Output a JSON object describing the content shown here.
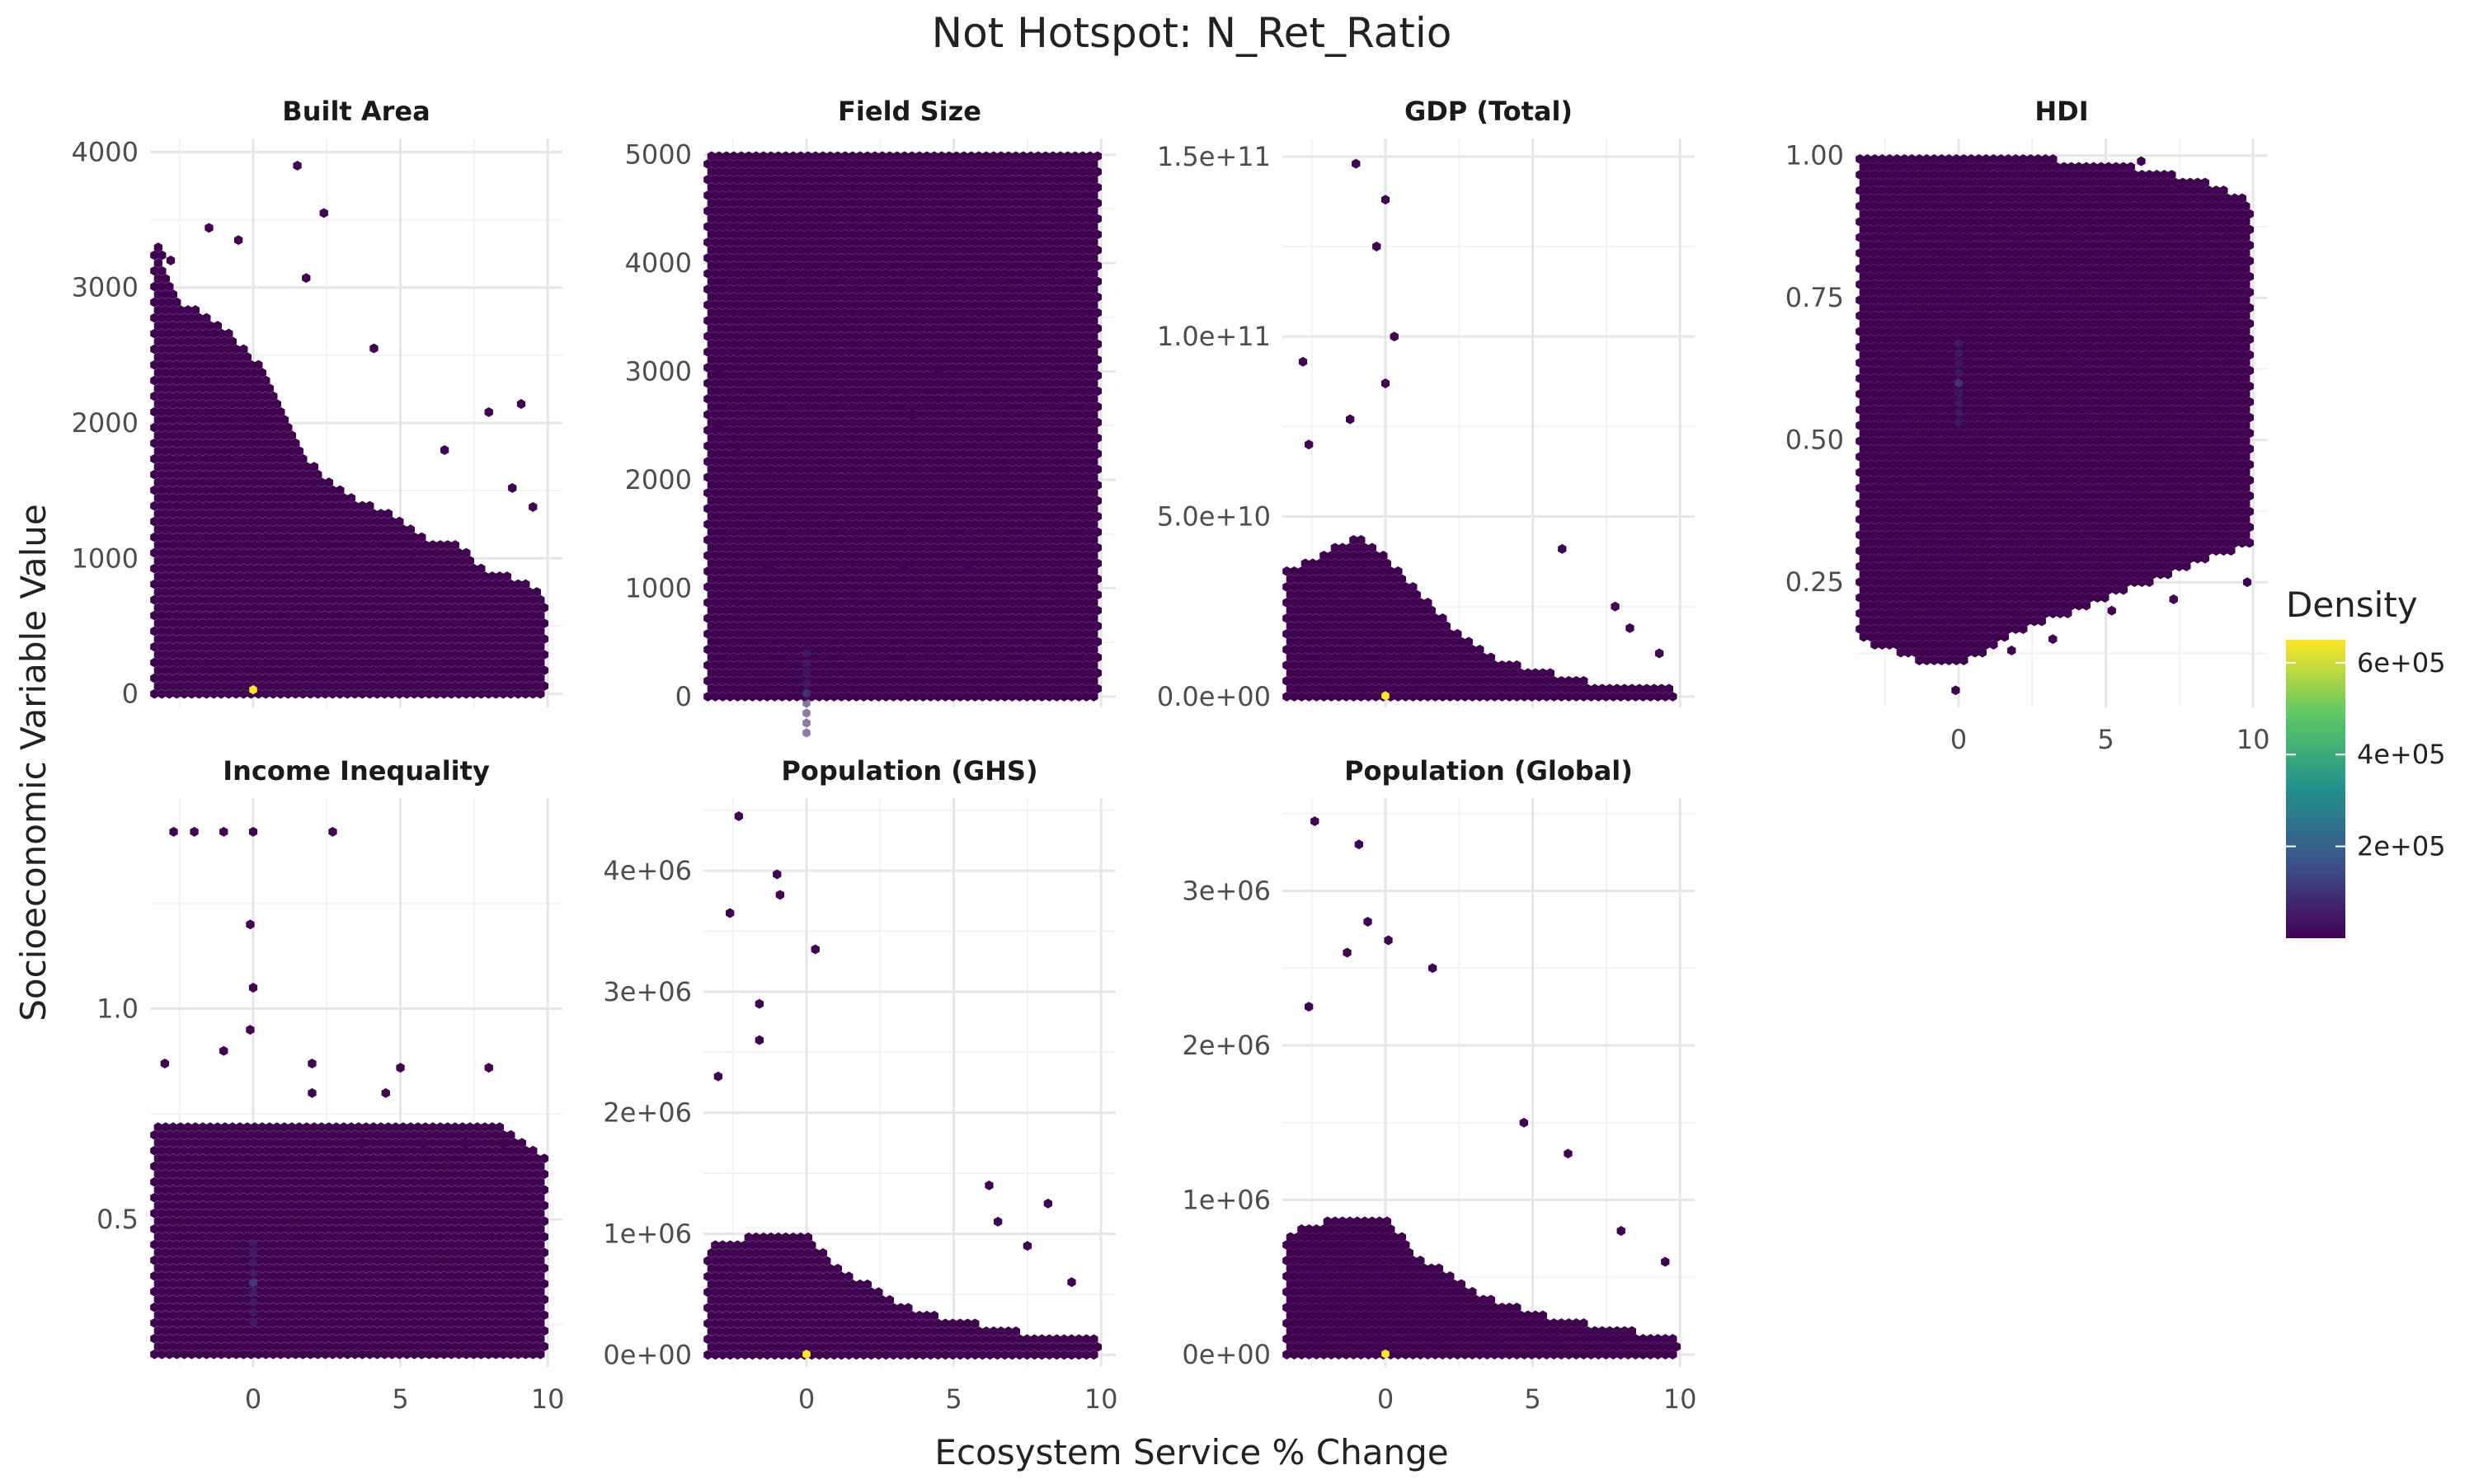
{
  "chart_data": {
    "type": "hexbin",
    "title": "Not Hotspot: N_Ret_Ratio",
    "xlabel": "Ecosystem Service % Change",
    "ylabel": "Socioeconomic Variable Value",
    "legend": {
      "title": "Density",
      "position": "right",
      "colormap": [
        "#440154",
        "#3b528b",
        "#21908c",
        "#5dc863",
        "#fde725"
      ],
      "range": [
        0,
        650000
      ],
      "ticks": [
        200000,
        400000,
        600000
      ],
      "tick_labels": [
        "2e+05",
        "4e+05",
        "6e+05"
      ]
    },
    "x_ticks": [
      0,
      5,
      10
    ],
    "x_tick_labels": [
      "0",
      "5",
      "10"
    ],
    "x_range": [
      -3.5,
      10.5
    ],
    "hex_fill_color": "#440154",
    "panels": [
      {
        "name": "Built Area",
        "ylim": [
          -100,
          4100
        ],
        "y_ticks": [
          0,
          1000,
          2000,
          3000,
          4000
        ],
        "y_tick_labels": [
          "0",
          "1000",
          "2000",
          "3000",
          "4000"
        ],
        "show_x_axis": false,
        "envelope": [
          [
            -3.2,
            3300
          ],
          [
            -2.5,
            2900
          ],
          [
            -1.5,
            2800
          ],
          [
            -0.5,
            2600
          ],
          [
            0,
            2500
          ],
          [
            1,
            2100
          ],
          [
            2,
            1700
          ],
          [
            3,
            1500
          ],
          [
            4,
            1400
          ],
          [
            5,
            1300
          ],
          [
            6,
            1150
          ],
          [
            7,
            1100
          ],
          [
            8,
            900
          ],
          [
            9,
            850
          ],
          [
            10,
            700
          ]
        ],
        "outliers": [
          [
            1.5,
            3900
          ],
          [
            2.4,
            3550
          ],
          [
            1.8,
            3070
          ],
          [
            -1.5,
            3440
          ],
          [
            -0.5,
            3350
          ],
          [
            -2.8,
            3200
          ],
          [
            4.1,
            2550
          ],
          [
            8.0,
            2080
          ],
          [
            9.1,
            2140
          ],
          [
            6.5,
            1800
          ],
          [
            8.8,
            1520
          ],
          [
            9.5,
            1380
          ]
        ],
        "density_peak": [
          [
            0,
            30,
            1.0
          ]
        ]
      },
      {
        "name": "Field Size",
        "ylim": [
          -100,
          5150
        ],
        "y_ticks": [
          0,
          1000,
          2000,
          3000,
          4000,
          5000
        ],
        "y_tick_labels": [
          "0",
          "1000",
          "2000",
          "3000",
          "4000",
          "5000"
        ],
        "show_x_axis": false,
        "envelope": [
          [
            -3.3,
            5000
          ],
          [
            6,
            5000
          ],
          [
            10,
            5000
          ]
        ],
        "outliers": [
          [
            -3.0,
            3000
          ],
          [
            -3.0,
            2500
          ],
          [
            -2.3,
            2250
          ],
          [
            -1.3,
            1200
          ],
          [
            3.6,
            2600
          ],
          [
            4.5,
            3000
          ],
          [
            3.3,
            1200
          ],
          [
            5.5,
            1200
          ]
        ],
        "density_peak": [
          [
            0,
            30,
            0.15
          ]
        ]
      },
      {
        "name": "GDP (Total)",
        "ylim": [
          -3000000000,
          155000000000
        ],
        "y_ticks": [
          0,
          50000000000,
          100000000000,
          150000000000
        ],
        "y_tick_labels": [
          "0.0e+00",
          "5.0e+10",
          "1.0e+11",
          "1.5e+11"
        ],
        "show_x_axis": false,
        "envelope": [
          [
            -3.2,
            35000000000
          ],
          [
            -2,
            40000000000
          ],
          [
            -1,
            45000000000
          ],
          [
            0,
            40000000000
          ],
          [
            1,
            30000000000
          ],
          [
            2,
            22000000000
          ],
          [
            3,
            14000000000
          ],
          [
            4,
            10000000000
          ],
          [
            5,
            8000000000
          ],
          [
            6,
            6000000000
          ],
          [
            7,
            4000000000
          ],
          [
            8,
            3000000000
          ],
          [
            10,
            2000000000
          ]
        ],
        "outliers": [
          [
            -1.0,
            148000000000
          ],
          [
            0.0,
            138000000000
          ],
          [
            -0.3,
            125000000000
          ],
          [
            0.3,
            100000000000
          ],
          [
            -2.8,
            93000000000
          ],
          [
            0.0,
            87000000000
          ],
          [
            -1.2,
            77000000000
          ],
          [
            -2.6,
            70000000000
          ],
          [
            6.0,
            41000000000
          ],
          [
            7.8,
            25000000000
          ],
          [
            8.3,
            19000000000
          ],
          [
            9.3,
            12000000000
          ]
        ],
        "density_peak": [
          [
            0,
            200000000,
            1.0
          ]
        ]
      },
      {
        "name": "HDI",
        "ylim": [
          0.03,
          1.03
        ],
        "y_ticks": [
          0.25,
          0.5,
          0.75,
          1.0
        ],
        "y_tick_labels": [
          "0.25",
          "0.50",
          "0.75",
          "1.00"
        ],
        "show_x_axis": true,
        "envelope_band": [
          [
            -3.3,
            0.15,
            1.0
          ],
          [
            -1,
            0.1,
            1.0
          ],
          [
            0,
            0.1,
            1.0
          ],
          [
            2,
            0.16,
            1.0
          ],
          [
            4,
            0.2,
            0.99
          ],
          [
            6,
            0.24,
            0.98
          ],
          [
            8,
            0.28,
            0.96
          ],
          [
            10,
            0.32,
            0.92
          ]
        ],
        "outliers": [
          [
            -0.1,
            0.06
          ],
          [
            1.8,
            0.13
          ],
          [
            3.2,
            0.15
          ],
          [
            5.2,
            0.2
          ],
          [
            7.3,
            0.22
          ],
          [
            9.8,
            0.25
          ],
          [
            6.2,
            0.99
          ],
          [
            7.5,
            0.95
          ]
        ],
        "density_peak": [
          [
            0,
            0.6,
            0.15
          ]
        ]
      },
      {
        "name": "Income Inequality",
        "ylim": [
          0.15,
          1.5
        ],
        "y_ticks": [
          0.5,
          1.0
        ],
        "y_tick_labels": [
          "0.5",
          "1.0"
        ],
        "show_x_axis": true,
        "envelope": [
          [
            -3.3,
            0.73
          ],
          [
            6,
            0.73
          ],
          [
            8.2,
            0.73
          ],
          [
            9.8,
            0.65
          ]
        ],
        "floor": 0.18,
        "outliers": [
          [
            -2.7,
            1.42
          ],
          [
            -2.0,
            1.42
          ],
          [
            -1.0,
            1.42
          ],
          [
            0.0,
            1.42
          ],
          [
            2.7,
            1.42
          ],
          [
            -0.1,
            1.2
          ],
          [
            0.0,
            1.05
          ],
          [
            -0.1,
            0.95
          ],
          [
            -3.0,
            0.87
          ],
          [
            -1.0,
            0.9
          ],
          [
            2.0,
            0.87
          ],
          [
            5.0,
            0.86
          ],
          [
            8.0,
            0.86
          ],
          [
            3.7,
            0.68
          ],
          [
            5.8,
            0.68
          ],
          [
            7.2,
            0.68
          ],
          [
            8.5,
            0.68
          ],
          [
            4.5,
            0.8
          ],
          [
            2.0,
            0.8
          ]
        ],
        "density_peak": [
          [
            0,
            0.35,
            0.18
          ]
        ]
      },
      {
        "name": "Population (GHS)",
        "ylim": [
          -100000,
          4600000
        ],
        "y_ticks": [
          0,
          1000000,
          2000000,
          3000000,
          4000000
        ],
        "y_tick_labels": [
          "0e+00",
          "1e+06",
          "2e+06",
          "3e+06",
          "4e+06"
        ],
        "show_x_axis": true,
        "envelope": [
          [
            -3.2,
            900000
          ],
          [
            -1.5,
            1000000
          ],
          [
            0,
            1000000
          ],
          [
            1,
            750000
          ],
          [
            2,
            600000
          ],
          [
            3,
            450000
          ],
          [
            4,
            350000
          ],
          [
            5,
            300000
          ],
          [
            6,
            250000
          ],
          [
            7,
            200000
          ],
          [
            8,
            180000
          ],
          [
            10,
            150000
          ]
        ],
        "outliers": [
          [
            -2.3,
            4450000
          ],
          [
            -1.0,
            3970000
          ],
          [
            -0.9,
            3800000
          ],
          [
            -2.6,
            3650000
          ],
          [
            0.3,
            3350000
          ],
          [
            -1.6,
            2900000
          ],
          [
            -1.6,
            2600000
          ],
          [
            -3.0,
            2300000
          ],
          [
            6.2,
            1400000
          ],
          [
            8.2,
            1250000
          ],
          [
            6.5,
            1100000
          ],
          [
            9.0,
            600000
          ],
          [
            7.5,
            900000
          ]
        ],
        "density_peak": [
          [
            0,
            5000,
            1.0
          ]
        ]
      },
      {
        "name": "Population (Global)",
        "ylim": [
          -80000,
          3600000
        ],
        "y_ticks": [
          0,
          1000000,
          2000000,
          3000000
        ],
        "y_tick_labels": [
          "0e+00",
          "1e+06",
          "2e+06",
          "3e+06"
        ],
        "show_x_axis": true,
        "envelope": [
          [
            -3.2,
            800000
          ],
          [
            -1.5,
            900000
          ],
          [
            0,
            900000
          ],
          [
            1,
            650000
          ],
          [
            2,
            550000
          ],
          [
            3,
            420000
          ],
          [
            4,
            330000
          ],
          [
            5,
            280000
          ],
          [
            6,
            230000
          ],
          [
            7,
            200000
          ],
          [
            8,
            160000
          ],
          [
            10,
            130000
          ]
        ],
        "outliers": [
          [
            -2.4,
            3450000
          ],
          [
            -0.9,
            3300000
          ],
          [
            -2.6,
            2250000
          ],
          [
            -0.6,
            2800000
          ],
          [
            0.1,
            2680000
          ],
          [
            -1.3,
            2600000
          ],
          [
            1.6,
            2500000
          ],
          [
            4.7,
            1500000
          ],
          [
            6.2,
            1300000
          ],
          [
            9.5,
            600000
          ],
          [
            8.0,
            800000
          ]
        ],
        "density_peak": [
          [
            0,
            4000,
            1.0
          ]
        ]
      }
    ]
  }
}
